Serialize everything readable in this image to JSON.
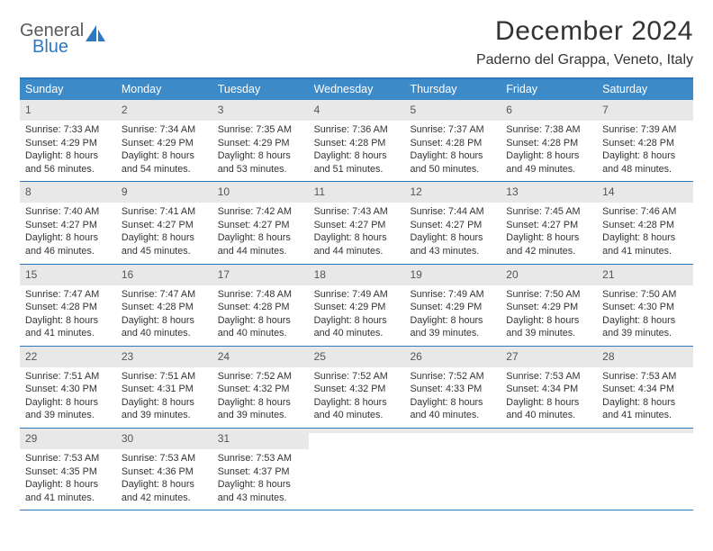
{
  "logo": {
    "line1": "General",
    "line2": "Blue"
  },
  "header": {
    "month_title": "December 2024",
    "location": "Paderno del Grappa, Veneto, Italy"
  },
  "colors": {
    "header_bar": "#3d8ac9",
    "rule": "#2f78bd",
    "daynum_bg": "#e8e8e8",
    "text": "#333333",
    "logo_gray": "#5a5a5a",
    "logo_blue": "#2f78bd"
  },
  "weekdays": [
    "Sunday",
    "Monday",
    "Tuesday",
    "Wednesday",
    "Thursday",
    "Friday",
    "Saturday"
  ],
  "weeks": [
    [
      {
        "n": "1",
        "sr": "Sunrise: 7:33 AM",
        "ss": "Sunset: 4:29 PM",
        "d1": "Daylight: 8 hours",
        "d2": "and 56 minutes."
      },
      {
        "n": "2",
        "sr": "Sunrise: 7:34 AM",
        "ss": "Sunset: 4:29 PM",
        "d1": "Daylight: 8 hours",
        "d2": "and 54 minutes."
      },
      {
        "n": "3",
        "sr": "Sunrise: 7:35 AM",
        "ss": "Sunset: 4:29 PM",
        "d1": "Daylight: 8 hours",
        "d2": "and 53 minutes."
      },
      {
        "n": "4",
        "sr": "Sunrise: 7:36 AM",
        "ss": "Sunset: 4:28 PM",
        "d1": "Daylight: 8 hours",
        "d2": "and 51 minutes."
      },
      {
        "n": "5",
        "sr": "Sunrise: 7:37 AM",
        "ss": "Sunset: 4:28 PM",
        "d1": "Daylight: 8 hours",
        "d2": "and 50 minutes."
      },
      {
        "n": "6",
        "sr": "Sunrise: 7:38 AM",
        "ss": "Sunset: 4:28 PM",
        "d1": "Daylight: 8 hours",
        "d2": "and 49 minutes."
      },
      {
        "n": "7",
        "sr": "Sunrise: 7:39 AM",
        "ss": "Sunset: 4:28 PM",
        "d1": "Daylight: 8 hours",
        "d2": "and 48 minutes."
      }
    ],
    [
      {
        "n": "8",
        "sr": "Sunrise: 7:40 AM",
        "ss": "Sunset: 4:27 PM",
        "d1": "Daylight: 8 hours",
        "d2": "and 46 minutes."
      },
      {
        "n": "9",
        "sr": "Sunrise: 7:41 AM",
        "ss": "Sunset: 4:27 PM",
        "d1": "Daylight: 8 hours",
        "d2": "and 45 minutes."
      },
      {
        "n": "10",
        "sr": "Sunrise: 7:42 AM",
        "ss": "Sunset: 4:27 PM",
        "d1": "Daylight: 8 hours",
        "d2": "and 44 minutes."
      },
      {
        "n": "11",
        "sr": "Sunrise: 7:43 AM",
        "ss": "Sunset: 4:27 PM",
        "d1": "Daylight: 8 hours",
        "d2": "and 44 minutes."
      },
      {
        "n": "12",
        "sr": "Sunrise: 7:44 AM",
        "ss": "Sunset: 4:27 PM",
        "d1": "Daylight: 8 hours",
        "d2": "and 43 minutes."
      },
      {
        "n": "13",
        "sr": "Sunrise: 7:45 AM",
        "ss": "Sunset: 4:27 PM",
        "d1": "Daylight: 8 hours",
        "d2": "and 42 minutes."
      },
      {
        "n": "14",
        "sr": "Sunrise: 7:46 AM",
        "ss": "Sunset: 4:28 PM",
        "d1": "Daylight: 8 hours",
        "d2": "and 41 minutes."
      }
    ],
    [
      {
        "n": "15",
        "sr": "Sunrise: 7:47 AM",
        "ss": "Sunset: 4:28 PM",
        "d1": "Daylight: 8 hours",
        "d2": "and 41 minutes."
      },
      {
        "n": "16",
        "sr": "Sunrise: 7:47 AM",
        "ss": "Sunset: 4:28 PM",
        "d1": "Daylight: 8 hours",
        "d2": "and 40 minutes."
      },
      {
        "n": "17",
        "sr": "Sunrise: 7:48 AM",
        "ss": "Sunset: 4:28 PM",
        "d1": "Daylight: 8 hours",
        "d2": "and 40 minutes."
      },
      {
        "n": "18",
        "sr": "Sunrise: 7:49 AM",
        "ss": "Sunset: 4:29 PM",
        "d1": "Daylight: 8 hours",
        "d2": "and 40 minutes."
      },
      {
        "n": "19",
        "sr": "Sunrise: 7:49 AM",
        "ss": "Sunset: 4:29 PM",
        "d1": "Daylight: 8 hours",
        "d2": "and 39 minutes."
      },
      {
        "n": "20",
        "sr": "Sunrise: 7:50 AM",
        "ss": "Sunset: 4:29 PM",
        "d1": "Daylight: 8 hours",
        "d2": "and 39 minutes."
      },
      {
        "n": "21",
        "sr": "Sunrise: 7:50 AM",
        "ss": "Sunset: 4:30 PM",
        "d1": "Daylight: 8 hours",
        "d2": "and 39 minutes."
      }
    ],
    [
      {
        "n": "22",
        "sr": "Sunrise: 7:51 AM",
        "ss": "Sunset: 4:30 PM",
        "d1": "Daylight: 8 hours",
        "d2": "and 39 minutes."
      },
      {
        "n": "23",
        "sr": "Sunrise: 7:51 AM",
        "ss": "Sunset: 4:31 PM",
        "d1": "Daylight: 8 hours",
        "d2": "and 39 minutes."
      },
      {
        "n": "24",
        "sr": "Sunrise: 7:52 AM",
        "ss": "Sunset: 4:32 PM",
        "d1": "Daylight: 8 hours",
        "d2": "and 39 minutes."
      },
      {
        "n": "25",
        "sr": "Sunrise: 7:52 AM",
        "ss": "Sunset: 4:32 PM",
        "d1": "Daylight: 8 hours",
        "d2": "and 40 minutes."
      },
      {
        "n": "26",
        "sr": "Sunrise: 7:52 AM",
        "ss": "Sunset: 4:33 PM",
        "d1": "Daylight: 8 hours",
        "d2": "and 40 minutes."
      },
      {
        "n": "27",
        "sr": "Sunrise: 7:53 AM",
        "ss": "Sunset: 4:34 PM",
        "d1": "Daylight: 8 hours",
        "d2": "and 40 minutes."
      },
      {
        "n": "28",
        "sr": "Sunrise: 7:53 AM",
        "ss": "Sunset: 4:34 PM",
        "d1": "Daylight: 8 hours",
        "d2": "and 41 minutes."
      }
    ],
    [
      {
        "n": "29",
        "sr": "Sunrise: 7:53 AM",
        "ss": "Sunset: 4:35 PM",
        "d1": "Daylight: 8 hours",
        "d2": "and 41 minutes."
      },
      {
        "n": "30",
        "sr": "Sunrise: 7:53 AM",
        "ss": "Sunset: 4:36 PM",
        "d1": "Daylight: 8 hours",
        "d2": "and 42 minutes."
      },
      {
        "n": "31",
        "sr": "Sunrise: 7:53 AM",
        "ss": "Sunset: 4:37 PM",
        "d1": "Daylight: 8 hours",
        "d2": "and 43 minutes."
      },
      {
        "empty": true
      },
      {
        "empty": true
      },
      {
        "empty": true
      },
      {
        "empty": true
      }
    ]
  ]
}
